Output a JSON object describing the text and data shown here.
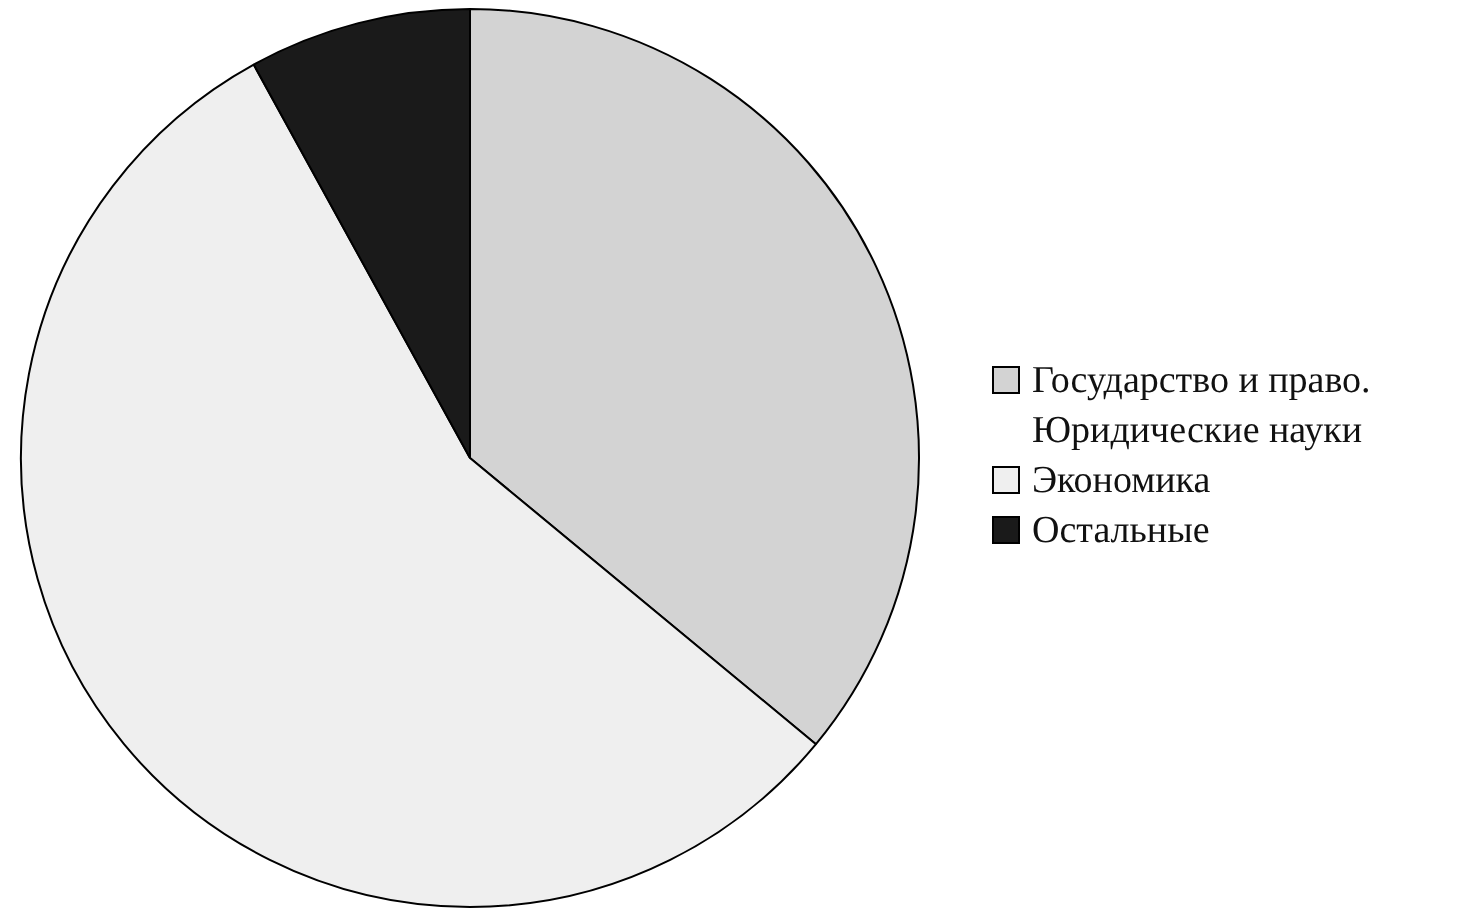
{
  "chart_data": {
    "type": "pie",
    "categories": [
      "Государство и право. Юридические науки",
      "Экономика",
      "Остальные"
    ],
    "values": [
      36,
      56,
      8
    ],
    "colors": [
      "#d3d3d3",
      "#efefef",
      "#1a1a1a"
    ],
    "legend": "right"
  }
}
